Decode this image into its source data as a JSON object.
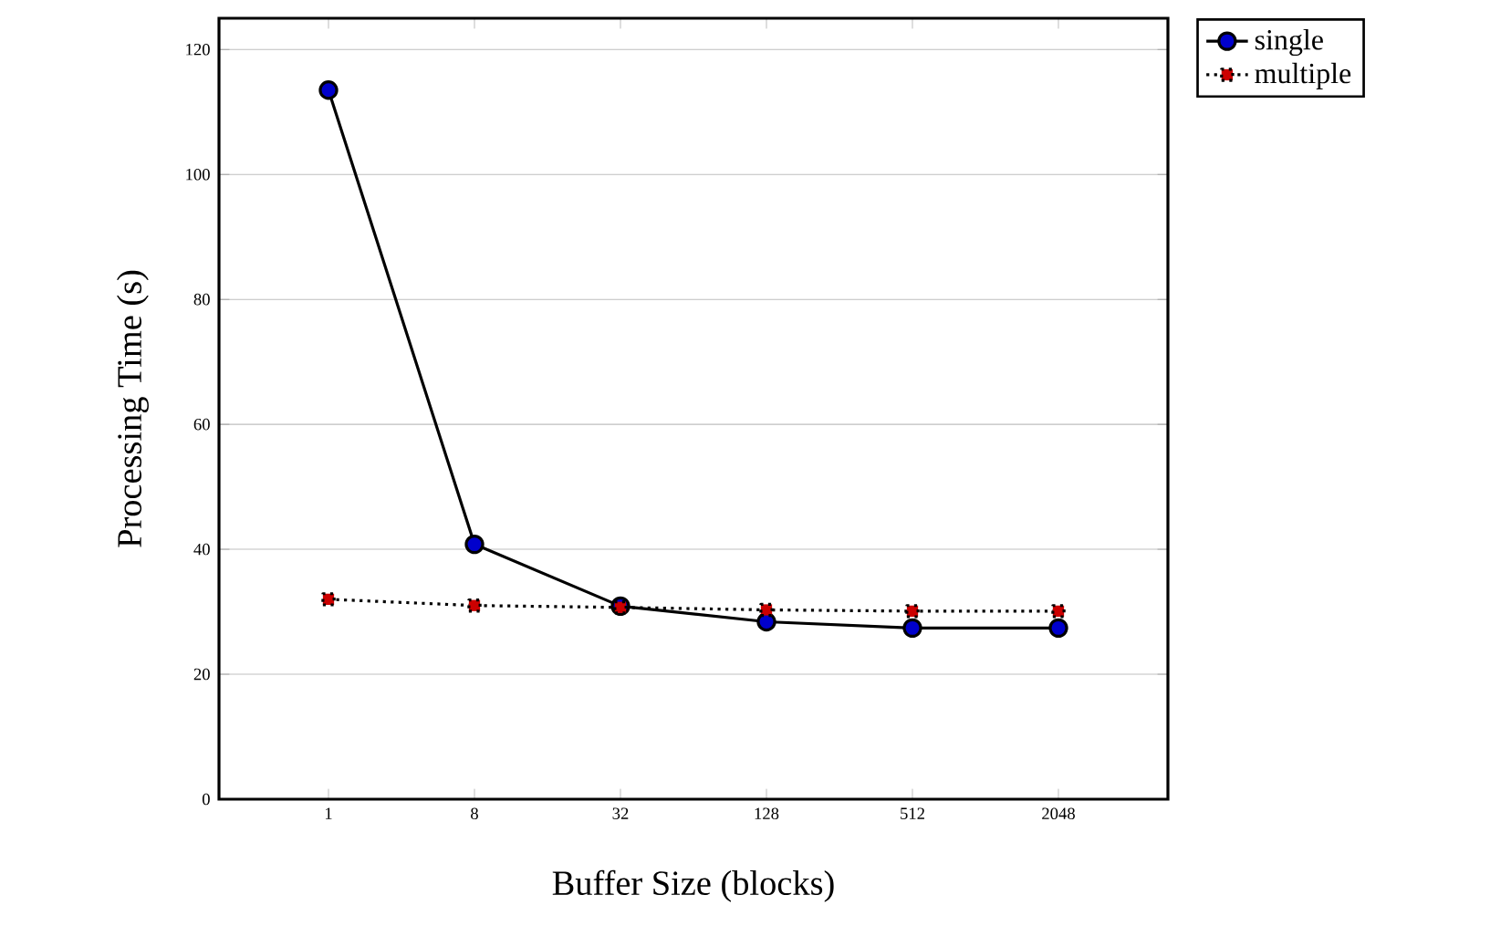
{
  "chart_data": {
    "type": "line",
    "xlabel": "Buffer Size (blocks)",
    "ylabel": "Processing Time (s)",
    "categories": [
      "1",
      "8",
      "32",
      "128",
      "512",
      "2048"
    ],
    "series": [
      {
        "name": "single",
        "color": "#0000cc",
        "marker": "circle",
        "line_style": "solid",
        "values": [
          113.5,
          40.8,
          30.9,
          28.4,
          27.4,
          27.4
        ]
      },
      {
        "name": "multiple",
        "color": "#cc0000",
        "marker": "square",
        "line_style": "dotted",
        "values": [
          32,
          31,
          30.7,
          30.3,
          30.1,
          30.1
        ]
      }
    ],
    "ylim": [
      0,
      125
    ],
    "yticks": [
      0,
      20,
      40,
      60,
      80,
      100,
      120
    ],
    "grid": "y",
    "legend": "top right"
  }
}
